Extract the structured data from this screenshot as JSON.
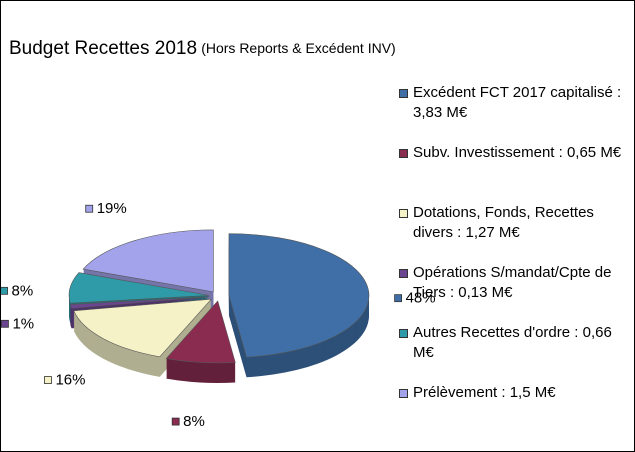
{
  "chart_data": {
    "type": "pie",
    "title": "Budget  Recettes 2018",
    "subtitle": "(Hors Reports & Excédent INV)",
    "categories": [
      "Excédent FCT 2017 capitalisé : 3,83 M€",
      "Subv. Investissement : 0,65 M€",
      "Dotations, Fonds, Recettes divers : 1,27 M€",
      "Opérations S/mandat/Cpte de Tiers : 0,13 M€",
      "Autres Recettes d'ordre : 0,66 M€",
      "Prélèvement : 1,5 M€"
    ],
    "values": [
      48,
      8,
      16,
      1,
      8,
      19
    ],
    "value_labels": [
      "48%",
      "8%",
      "16%",
      "1%",
      "8%",
      "19%"
    ],
    "colors": [
      "#3f6fa6",
      "#8a2c50",
      "#f5f2c8",
      "#6b4590",
      "#2f9aa8",
      "#a3a3ec"
    ],
    "legend": "right"
  }
}
